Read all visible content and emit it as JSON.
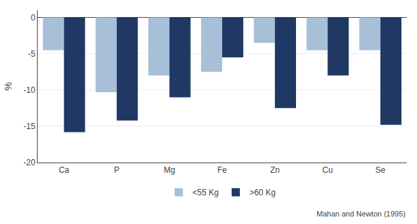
{
  "chart_data": {
    "type": "bar",
    "categories": [
      "Ca",
      "P",
      "Mg",
      "Fe",
      "Zn",
      "Cu",
      "Se"
    ],
    "series": [
      {
        "name": "<55 Kg",
        "color": "#a8bfd8",
        "values": [
          -4.5,
          -10.3,
          -8.0,
          -7.5,
          -3.5,
          -4.5,
          -4.5
        ]
      },
      {
        "name": ">60 Kg",
        "color": "#1f3864",
        "values": [
          -15.8,
          -14.2,
          -11.0,
          -5.5,
          -12.5,
          -8.0,
          -14.8
        ]
      }
    ],
    "ylabel": "%",
    "ylim": [
      -20,
      1
    ],
    "yticks": [
      0,
      -5,
      -10,
      -15,
      -20
    ],
    "grid": true,
    "legend": "bottom",
    "annotations": [
      "Mahan and Newton (1995)"
    ]
  }
}
